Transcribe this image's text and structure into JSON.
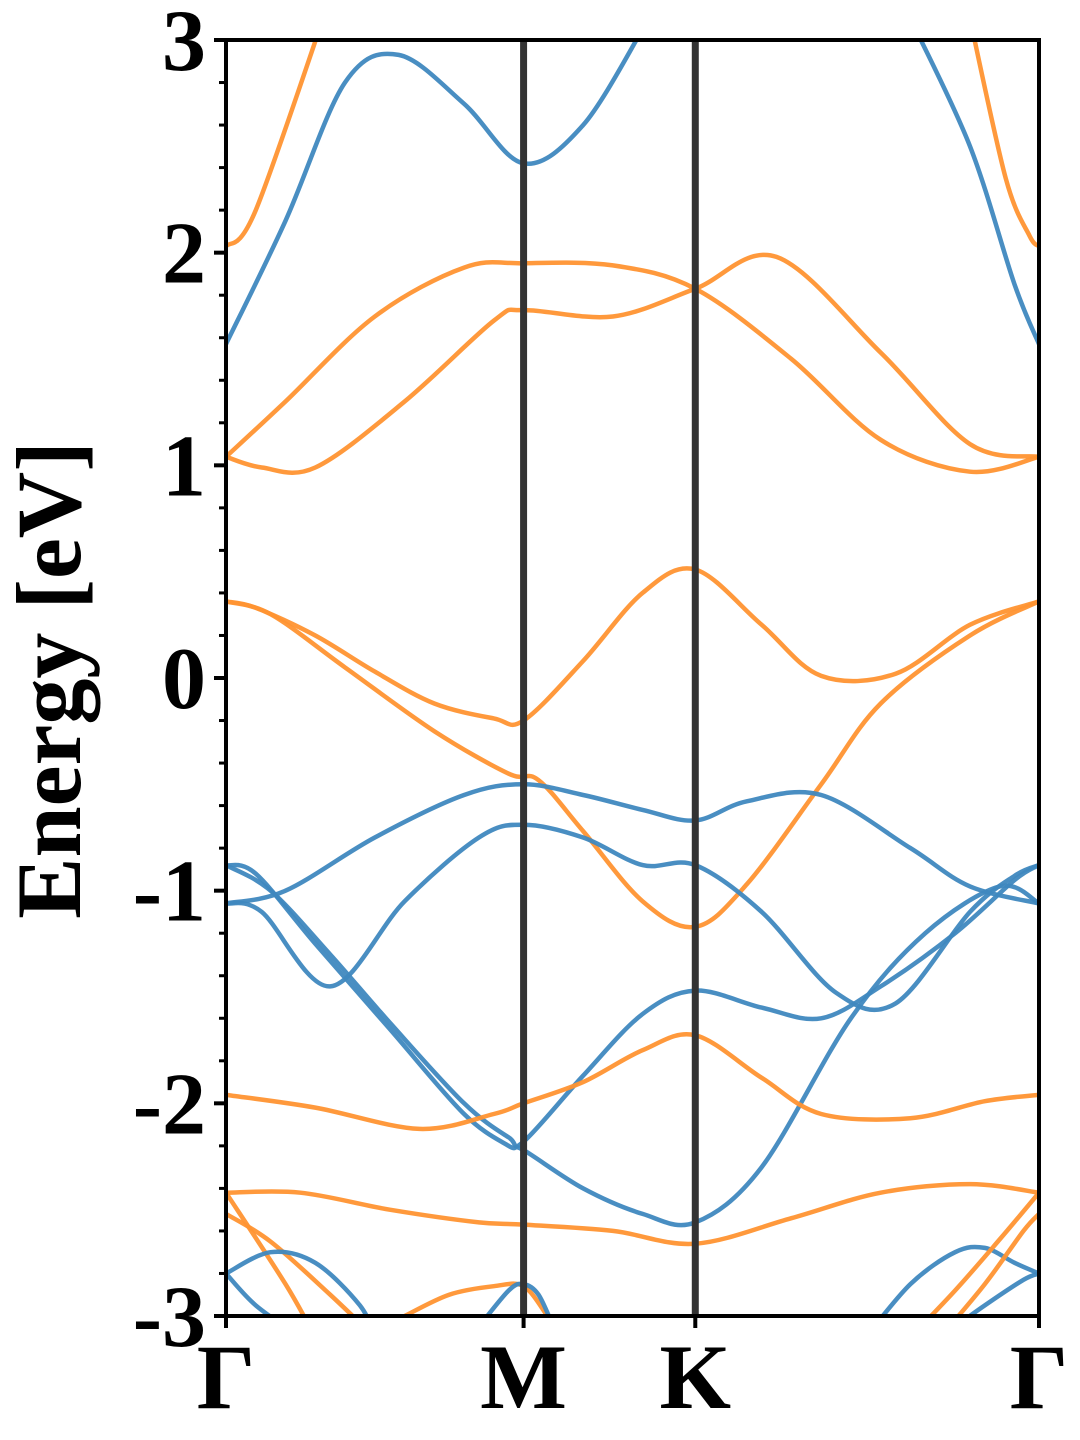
{
  "chart_data": {
    "type": "line",
    "title": "",
    "xlabel": "",
    "ylabel": "Energy [eV]",
    "ylim": [
      -3,
      3
    ],
    "grid": false,
    "legend": "none",
    "x_points": [
      {
        "label": "Γ",
        "x": 0.0
      },
      {
        "label": "M",
        "x": 1.0
      },
      {
        "label": "K",
        "x": 1.577
      },
      {
        "label": "Γ",
        "x": 2.732
      }
    ],
    "y_ticks": [
      {
        "value": 3,
        "label": "3"
      },
      {
        "value": 2,
        "label": "2"
      },
      {
        "value": 1,
        "label": "1"
      },
      {
        "value": 0,
        "label": "0"
      },
      {
        "value": -1,
        "label": "-1"
      },
      {
        "value": -2,
        "label": "-2"
      },
      {
        "value": -3,
        "label": "-3"
      }
    ],
    "colors": {
      "blue": "#3f88bf",
      "orange": "#ff9432",
      "vline": "#333333",
      "axis": "#000000"
    },
    "series": [
      {
        "color": "orange",
        "x": [
          0,
          0.1,
          0.35
        ],
        "y": [
          2.03,
          2.2,
          3.2
        ]
      },
      {
        "color": "blue",
        "x": [
          0,
          0.2,
          0.4,
          0.58,
          0.8,
          1.0,
          1.2,
          1.4
        ],
        "y": [
          1.57,
          2.15,
          2.8,
          2.93,
          2.7,
          2.42,
          2.6,
          3.05
        ]
      },
      {
        "color": "blue",
        "x": [
          2.3,
          2.5,
          2.65,
          2.732
        ],
        "y": [
          3.1,
          2.5,
          1.85,
          1.57
        ]
      },
      {
        "color": "orange",
        "x": [
          2.5,
          2.62,
          2.7,
          2.732
        ],
        "y": [
          3.1,
          2.35,
          2.08,
          2.03
        ]
      },
      {
        "color": "orange",
        "x": [
          0,
          0.2,
          0.5,
          0.8,
          1.0,
          1.3,
          1.577,
          1.9,
          2.2,
          2.5,
          2.732
        ],
        "y": [
          1.04,
          1.3,
          1.7,
          1.93,
          1.95,
          1.94,
          1.83,
          1.5,
          1.12,
          0.97,
          1.04
        ]
      },
      {
        "color": "orange",
        "x": [
          0,
          0.12,
          0.3,
          0.6,
          0.9,
          1.0,
          1.3,
          1.577,
          1.85,
          2.2,
          2.5,
          2.732
        ],
        "y": [
          1.04,
          0.99,
          0.99,
          1.3,
          1.68,
          1.73,
          1.7,
          1.83,
          1.98,
          1.53,
          1.1,
          1.04
        ]
      },
      {
        "color": "orange",
        "x": [
          0,
          0.1,
          0.3,
          0.5,
          0.7,
          0.9,
          1.0,
          1.2,
          1.4,
          1.577,
          1.8,
          2.0,
          2.25,
          2.5,
          2.732
        ],
        "y": [
          0.36,
          0.33,
          0.2,
          0.03,
          -0.12,
          -0.19,
          -0.2,
          0.08,
          0.4,
          0.51,
          0.25,
          0.01,
          0.02,
          0.25,
          0.36
        ]
      },
      {
        "color": "orange",
        "x": [
          0,
          0.15,
          0.4,
          0.7,
          0.95,
          1.05,
          1.2,
          1.4,
          1.577,
          1.75,
          2.0,
          2.2,
          2.5,
          2.732
        ],
        "y": [
          0.36,
          0.3,
          0.05,
          -0.25,
          -0.45,
          -0.48,
          -0.72,
          -1.05,
          -1.17,
          -0.97,
          -0.5,
          -0.12,
          0.2,
          0.36
        ]
      },
      {
        "color": "blue",
        "x": [
          0,
          0.2,
          0.5,
          0.8,
          1.0,
          1.2,
          1.4,
          1.577,
          1.75,
          2.0,
          2.3,
          2.5,
          2.732
        ],
        "y": [
          -1.06,
          -1.0,
          -0.75,
          -0.55,
          -0.5,
          -0.55,
          -0.62,
          -0.67,
          -0.58,
          -0.55,
          -0.8,
          -0.98,
          -1.06
        ]
      },
      {
        "color": "blue",
        "x": [
          0,
          0.12,
          0.35,
          0.6,
          0.85,
          1.0,
          1.2,
          1.4,
          1.577,
          1.8,
          2.05,
          2.25,
          2.5,
          2.65,
          2.732
        ],
        "y": [
          -1.06,
          -1.1,
          -1.45,
          -1.05,
          -0.75,
          -0.69,
          -0.75,
          -0.88,
          -0.88,
          -1.1,
          -1.48,
          -1.53,
          -1.1,
          -0.93,
          -0.88
        ]
      },
      {
        "color": "blue",
        "x": [
          0,
          0.15,
          0.35,
          0.55,
          0.8,
          0.95,
          1.0,
          1.2,
          1.4,
          1.577,
          1.8,
          2.0,
          2.2,
          2.45,
          2.65,
          2.732
        ],
        "y": [
          -0.88,
          -1.0,
          -1.3,
          -1.62,
          -2.0,
          -2.16,
          -2.18,
          -1.87,
          -1.58,
          -1.47,
          -1.55,
          -1.6,
          -1.45,
          -1.2,
          -0.95,
          -0.88
        ]
      },
      {
        "color": "blue",
        "x": [
          0,
          0.1,
          0.3,
          0.55,
          0.8,
          0.95,
          1.0,
          1.2,
          1.4,
          1.577,
          1.8,
          2.1,
          2.35,
          2.6,
          2.732
        ],
        "y": [
          -0.88,
          -0.92,
          -1.25,
          -1.65,
          -2.05,
          -2.2,
          -2.22,
          -2.4,
          -2.52,
          -2.56,
          -2.3,
          -1.6,
          -1.2,
          -0.98,
          -1.06
        ]
      },
      {
        "color": "orange",
        "x": [
          0,
          0.3,
          0.65,
          0.9,
          1.0,
          1.2,
          1.4,
          1.577,
          1.8,
          2.0,
          2.3,
          2.55,
          2.732
        ],
        "y": [
          -1.96,
          -2.02,
          -2.12,
          -2.05,
          -2.0,
          -1.9,
          -1.75,
          -1.68,
          -1.88,
          -2.05,
          -2.07,
          -1.99,
          -1.96
        ]
      },
      {
        "color": "orange",
        "x": [
          0,
          0.25,
          0.55,
          0.85,
          1.0,
          1.3,
          1.577,
          1.9,
          2.2,
          2.5,
          2.732
        ],
        "y": [
          -2.42,
          -2.42,
          -2.5,
          -2.56,
          -2.57,
          -2.6,
          -2.66,
          -2.54,
          -2.42,
          -2.38,
          -2.42
        ]
      },
      {
        "color": "orange",
        "x": [
          0,
          0.15,
          0.35,
          0.5
        ],
        "y": [
          -2.52,
          -2.65,
          -2.9,
          -3.1
        ]
      },
      {
        "color": "orange",
        "x": [
          0,
          0.2,
          0.3
        ],
        "y": [
          -2.42,
          -2.85,
          -3.1
        ]
      },
      {
        "color": "blue",
        "x": [
          0,
          0.15,
          0.3,
          0.45,
          0.5
        ],
        "y": [
          -2.8,
          -2.7,
          -2.75,
          -2.95,
          -3.1
        ]
      },
      {
        "color": "blue",
        "x": [
          0,
          0.1,
          0.25
        ],
        "y": [
          -2.8,
          -2.95,
          -3.1
        ]
      },
      {
        "color": "orange",
        "x": [
          0.6,
          0.75,
          0.9,
          1.0,
          1.08
        ],
        "y": [
          -3.0,
          -2.9,
          -2.86,
          -2.86,
          -3.0
        ]
      },
      {
        "color": "blue",
        "x": [
          0.85,
          0.95,
          1.0,
          1.05,
          1.1
        ],
        "y": [
          -3.05,
          -2.88,
          -2.85,
          -2.9,
          -3.05
        ]
      },
      {
        "color": "blue",
        "x": [
          2.15,
          2.3,
          2.45,
          2.55,
          2.65,
          2.732
        ],
        "y": [
          -3.1,
          -2.85,
          -2.7,
          -2.68,
          -2.75,
          -2.8
        ]
      },
      {
        "color": "blue",
        "x": [
          2.4,
          2.55,
          2.68,
          2.732
        ],
        "y": [
          -3.1,
          -2.95,
          -2.83,
          -2.8
        ]
      },
      {
        "color": "orange",
        "x": [
          2.3,
          2.45,
          2.6,
          2.732
        ],
        "y": [
          -3.1,
          -2.88,
          -2.64,
          -2.42
        ]
      },
      {
        "color": "orange",
        "x": [
          2.4,
          2.55,
          2.68,
          2.732
        ],
        "y": [
          -3.1,
          -2.85,
          -2.6,
          -2.52
        ]
      }
    ]
  }
}
